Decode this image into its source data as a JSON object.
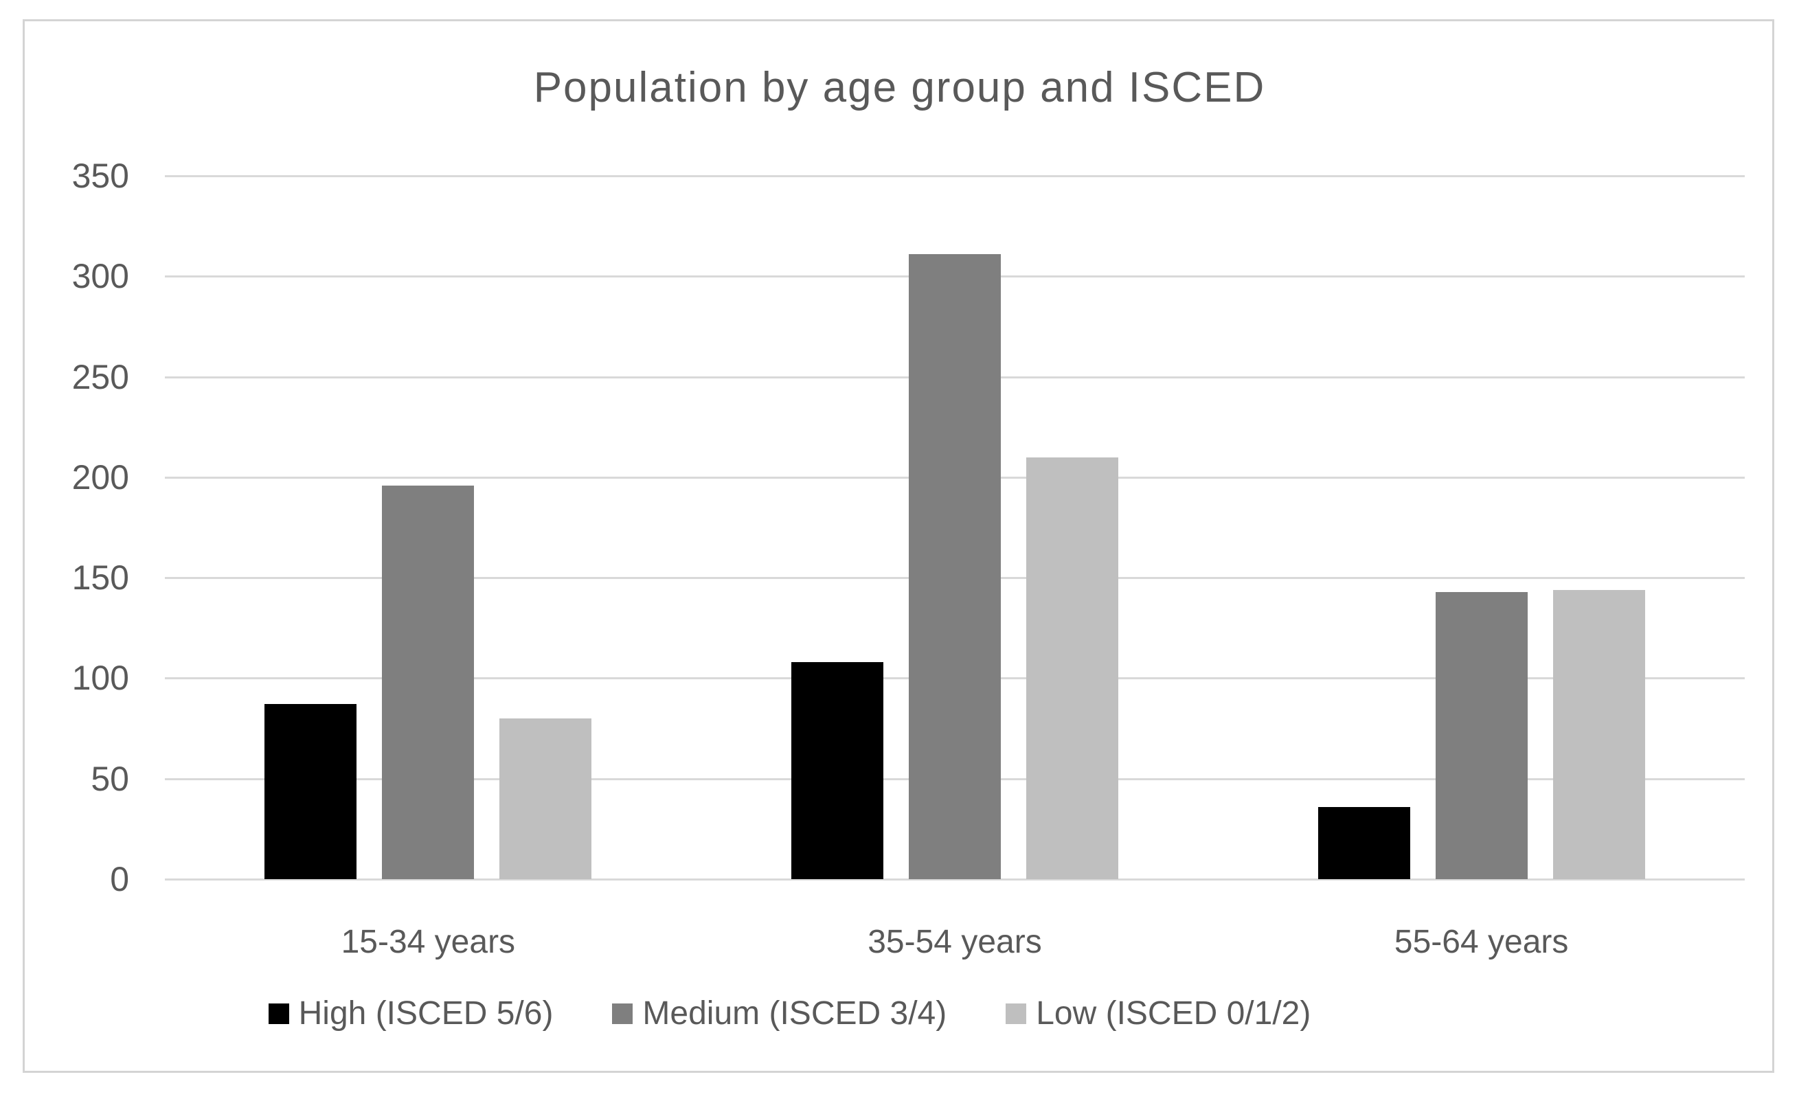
{
  "chart_data": {
    "type": "bar",
    "title": "Population by age group and ISCED",
    "categories": [
      "15-34 years",
      "35-54 years",
      "55-64 years"
    ],
    "series": [
      {
        "name": "High (ISCED 5/6)",
        "color": "#000000",
        "values": [
          87,
          108,
          36
        ]
      },
      {
        "name": "Medium (ISCED 3/4)",
        "color": "#7F7F7F",
        "values": [
          196,
          311,
          143
        ]
      },
      {
        "name": "Low (ISCED 0/1/2)",
        "color": "#BFBFBF",
        "values": [
          80,
          210,
          144
        ]
      }
    ],
    "xlabel": "",
    "ylabel": "",
    "ylim": [
      0,
      350
    ],
    "yticks": [
      0,
      50,
      100,
      150,
      200,
      250,
      300,
      350
    ],
    "grid": "horizontal gridlines on",
    "legend_position": "bottom",
    "colors": {
      "gridline": "#D9D9D9",
      "text": "#595959",
      "frame_border": "#D4D4D4",
      "background": "#FFFFFF"
    }
  }
}
